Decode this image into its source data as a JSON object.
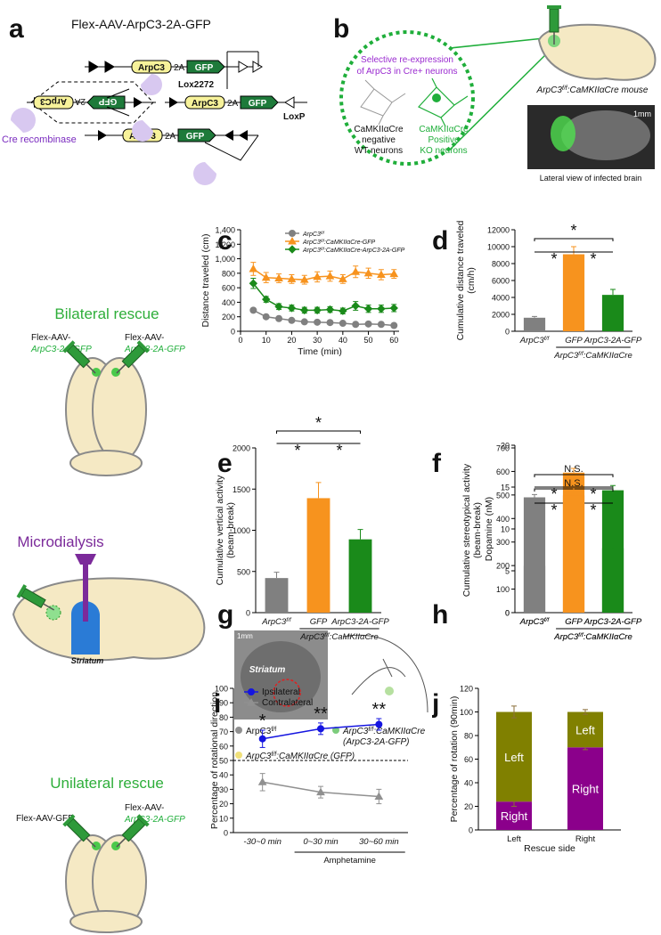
{
  "panel_labels": [
    "a",
    "b",
    "c",
    "d",
    "e",
    "f",
    "g",
    "h",
    "i",
    "j"
  ],
  "construct": {
    "title": "Flex-AAV-ArpC3-2A-GFP",
    "gene": "ArpC3",
    "linker": "2A",
    "reporter": "GFP",
    "site_1": "Lox2272",
    "site_2": "LoxP",
    "enzyme": "Cre recombinase"
  },
  "strategy": {
    "caption": [
      "Selective re-expression",
      "of ArpC3 in Cre+ neurons"
    ],
    "wt": [
      "CaMKIIαCre",
      "negative",
      "WT neurons"
    ],
    "ko": [
      "CaMKIIαCre",
      "Positive",
      "KO neurons"
    ],
    "mouse": "ArpC3f/f:CaMKIIαCre mouse",
    "scale": "1mm",
    "photo_caption": "Lateral view of infected brain"
  },
  "bilateral": {
    "title": "Bilateral rescue",
    "vector_prefix": "Flex-AAV-",
    "vector": "ArpC3-2A-GFP"
  },
  "microdialysis": {
    "title": "Microdialysis",
    "region": "Striatum"
  },
  "unilateral": {
    "title": "Unilateral rescue",
    "control": "Flex-AAV-GFP",
    "vector_prefix": "Flex-AAV-",
    "vector": "ArpC3-2A-GFP"
  },
  "histology": {
    "scale": "1mm",
    "region": "Striatum",
    "legend": [
      "ArpC3f/f",
      "ArpC3f/f:CaMKIIαCre",
      "(ArpC3-2A-GFP)",
      "ArpC3f/f:CaMKIIαCre (GFP)"
    ]
  },
  "chart_data": [
    {
      "type": "line",
      "ylabel": "Distance traveled (cm)",
      "xlabel": "Time (min)",
      "xlim": [
        0,
        62
      ],
      "xticks": [
        0,
        10,
        20,
        30,
        40,
        50,
        60
      ],
      "ylim": [
        0,
        1400
      ],
      "yticks": [
        0,
        200,
        400,
        600,
        800,
        {
          "value": 1000,
          "label": "1,000"
        },
        {
          "value": 1200,
          "label": "1,200"
        },
        {
          "value": 1400,
          "label": "1,400"
        }
      ],
      "x": [
        5,
        10,
        15,
        20,
        25,
        30,
        35,
        40,
        45,
        50,
        55,
        60
      ],
      "legend": "upper left",
      "series": [
        {
          "name": "ArpC3f/f",
          "color": "#808080",
          "marker": "circle",
          "values": [
            290,
            200,
            175,
            150,
            130,
            125,
            120,
            110,
            95,
            100,
            95,
            80
          ],
          "errors": [
            25,
            15,
            12,
            10,
            10,
            10,
            10,
            10,
            8,
            8,
            8,
            8
          ]
        },
        {
          "name": "ArpC3f/f:CaMKIIαCre-GFP",
          "color": "#f7931e",
          "marker": "triangle",
          "values": [
            860,
            740,
            730,
            720,
            710,
            750,
            760,
            720,
            820,
            800,
            780,
            790
          ],
          "errors": [
            90,
            70,
            60,
            60,
            60,
            70,
            70,
            60,
            80,
            70,
            70,
            60
          ]
        },
        {
          "name": "ArpC3f/f:CaMKIIαCre-ArpC3-2A-GFP",
          "color": "#1a8a1a",
          "marker": "diamond",
          "values": [
            660,
            440,
            340,
            320,
            290,
            290,
            300,
            280,
            350,
            310,
            310,
            320
          ],
          "errors": [
            70,
            40,
            40,
            40,
            40,
            40,
            40,
            40,
            60,
            50,
            50,
            50
          ]
        }
      ]
    },
    {
      "type": "bar",
      "ylabel": [
        "Cumulative distance traveled",
        "(cm/h)"
      ],
      "categories": [
        "ArpC3f/f",
        "GFP",
        "ArpC3-2A-GFP"
      ],
      "group_label": "ArpC3f/f:CaMKIIαCre",
      "values": [
        1600,
        9100,
        4300
      ],
      "errors": [
        150,
        900,
        650
      ],
      "colors": [
        "#808080",
        "#f7931e",
        "#1a8a1a"
      ],
      "ylim": [
        0,
        12000
      ],
      "yticks": [
        0,
        2000,
        4000,
        6000,
        8000,
        10000,
        12000
      ],
      "significance": [
        "*",
        "*",
        "*"
      ]
    },
    {
      "type": "bar",
      "ylabel": [
        "Cumulative vertical activity",
        "(beam-break)"
      ],
      "categories": [
        "ArpC3f/f",
        "GFP",
        "ArpC3-2A-GFP"
      ],
      "group_label": "ArpC3f/f:CaMKIIαCre",
      "values": [
        420,
        1390,
        890
      ],
      "errors": [
        70,
        190,
        120
      ],
      "colors": [
        "#808080",
        "#f7931e",
        "#1a8a1a"
      ],
      "ylim": [
        0,
        2000
      ],
      "yticks": [
        0,
        500,
        1000,
        1500,
        2000
      ],
      "significance": [
        "*",
        "*",
        "*"
      ]
    },
    {
      "type": "bar",
      "ylabel": [
        "Cumulative stereotypical activity",
        "(beam-break)"
      ],
      "categories": [
        "ArpC3f/f",
        "GFP",
        "ArpC3-2A-GFP"
      ],
      "group_label": "ArpC3f/f:CaMKIIαCre",
      "values": [
        490,
        595,
        520
      ],
      "errors": [
        12,
        18,
        20
      ],
      "colors": [
        "#808080",
        "#f7931e",
        "#1a8a1a"
      ],
      "ylim": [
        0,
        700
      ],
      "yticks": [
        0,
        100,
        200,
        300,
        400,
        500,
        600,
        700
      ],
      "significance": [
        "N.S.",
        "*",
        "*"
      ]
    },
    {
      "type": "bar",
      "ylabel": "Dopamine (nM)",
      "categories": [
        "ArpC3f/f",
        "GFP",
        "ArpC3-2A-GFP"
      ],
      "group_label": "ArpC3f/f:CaMKIIαCre",
      "values": [
        5.6,
        14,
        7.7
      ],
      "errors": [
        1,
        1.6,
        1.8
      ],
      "colors": [
        "#808080",
        "#f7931e",
        "#1a8a1a"
      ],
      "ylim": [
        0,
        20
      ],
      "yticks": [
        0,
        5,
        10,
        15,
        20
      ],
      "significance": [
        "N.S.",
        "*",
        "*"
      ]
    },
    {
      "type": "line",
      "ylabel": "Percentage of rotational direction",
      "categories": [
        "-30~0 min",
        "0~30 min",
        "30~60 min"
      ],
      "group_label": "Amphetamine",
      "ylim": [
        0,
        100
      ],
      "yticks": [
        0,
        10,
        20,
        30,
        40,
        50,
        60,
        70,
        80,
        90,
        100
      ],
      "reference_line": 50,
      "legend": "upper left",
      "series": [
        {
          "name": "Ipsilateral",
          "color": "#1515e0",
          "marker": "circle",
          "values": [
            65,
            72,
            75
          ],
          "errors": [
            6,
            4,
            4
          ]
        },
        {
          "name": "Contralateral",
          "color": "#909090",
          "marker": "triangle",
          "values": [
            35,
            28,
            25
          ],
          "errors": [
            6,
            4,
            5
          ]
        }
      ],
      "annotations": [
        "*",
        "**",
        "**"
      ]
    },
    {
      "type": "bar",
      "stacked": true,
      "ylabel": "Percentage of rotation (90min)",
      "xlabel": "Rescue side",
      "categories": [
        "Left",
        "Right"
      ],
      "ylim": [
        0,
        120
      ],
      "yticks": [
        0,
        20,
        40,
        60,
        80,
        100,
        120
      ],
      "series": [
        {
          "name": "Right",
          "color": "#8b008b",
          "values": [
            24,
            70
          ],
          "errors": [
            4,
            2
          ]
        },
        {
          "name": "Left",
          "color": "#808000",
          "values": [
            76,
            30
          ],
          "errors": [
            5,
            2
          ]
        }
      ]
    }
  ]
}
